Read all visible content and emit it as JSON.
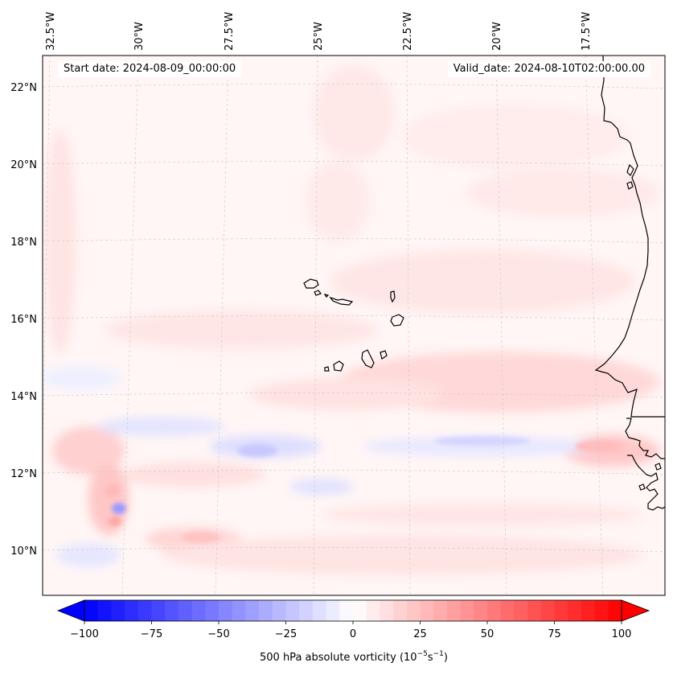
{
  "header": {
    "start_date": "Start date: 2024-08-09_00:00:00",
    "valid_date": "Valid_date: 2024-08-10T02:00:00.00"
  },
  "map": {
    "lon_labels": [
      "32.5°W",
      "30°W",
      "27.5°W",
      "25°W",
      "22.5°W",
      "20°W",
      "17.5°W"
    ],
    "lat_labels": [
      "22°N",
      "20°N",
      "18°N",
      "16°N",
      "14°N",
      "12°N",
      "10°N"
    ],
    "variable": "500 hPa absolute vorticity",
    "features": [
      "cape-verde-islands",
      "west-africa-coastline"
    ]
  },
  "colorbar": {
    "ticks": [
      "−100",
      "−75",
      "−50",
      "−25",
      "0",
      "25",
      "50",
      "75",
      "100"
    ],
    "label_prefix": "500 hPa absolute vorticity (10",
    "label_exp1": "−5",
    "label_mid": "s",
    "label_exp2": "−1",
    "label_suffix": ")",
    "min": -100,
    "max": 100,
    "colors": {
      "low": "#0000ff",
      "mid": "#ffffff",
      "high": "#ff0000"
    }
  }
}
